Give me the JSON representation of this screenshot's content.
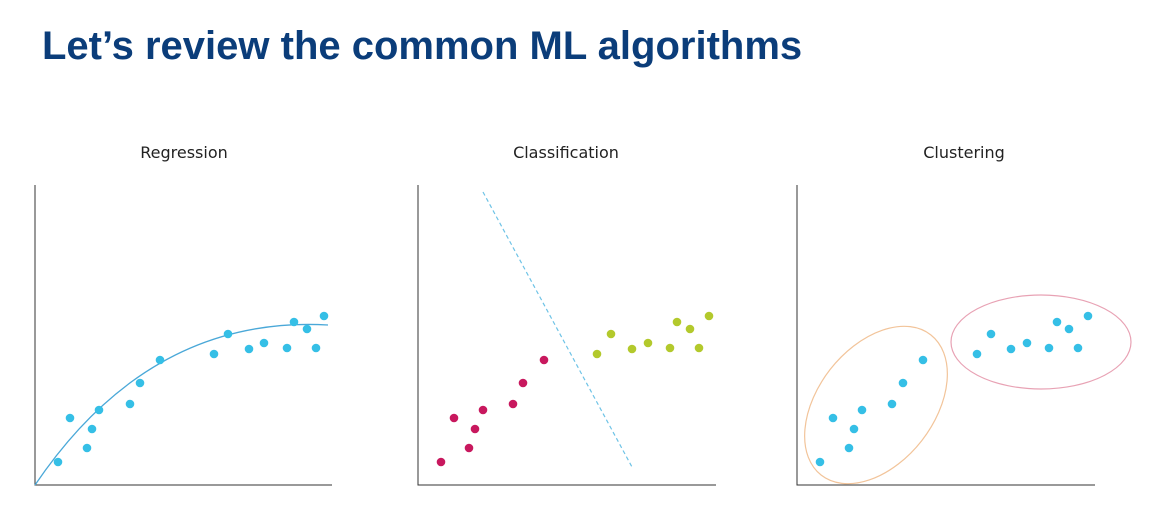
{
  "slide": {
    "title": "Let’s review the common ML algorithms"
  },
  "panels": [
    {
      "id": "regression",
      "title": "Regression"
    },
    {
      "id": "classification",
      "title": "Classification"
    },
    {
      "id": "clustering",
      "title": "Clustering"
    }
  ],
  "colors": {
    "title": "#0b3d7a",
    "axis": "#333333",
    "blue_points": "#35bfe6",
    "magenta_points": "#c8185e",
    "green_points": "#b3c92c",
    "regression_curve": "#4aa8d8",
    "decision_line": "#6ec3e6",
    "cluster1_ellipse": "#f2c49a",
    "cluster2_ellipse": "#e8a2b4"
  }
}
